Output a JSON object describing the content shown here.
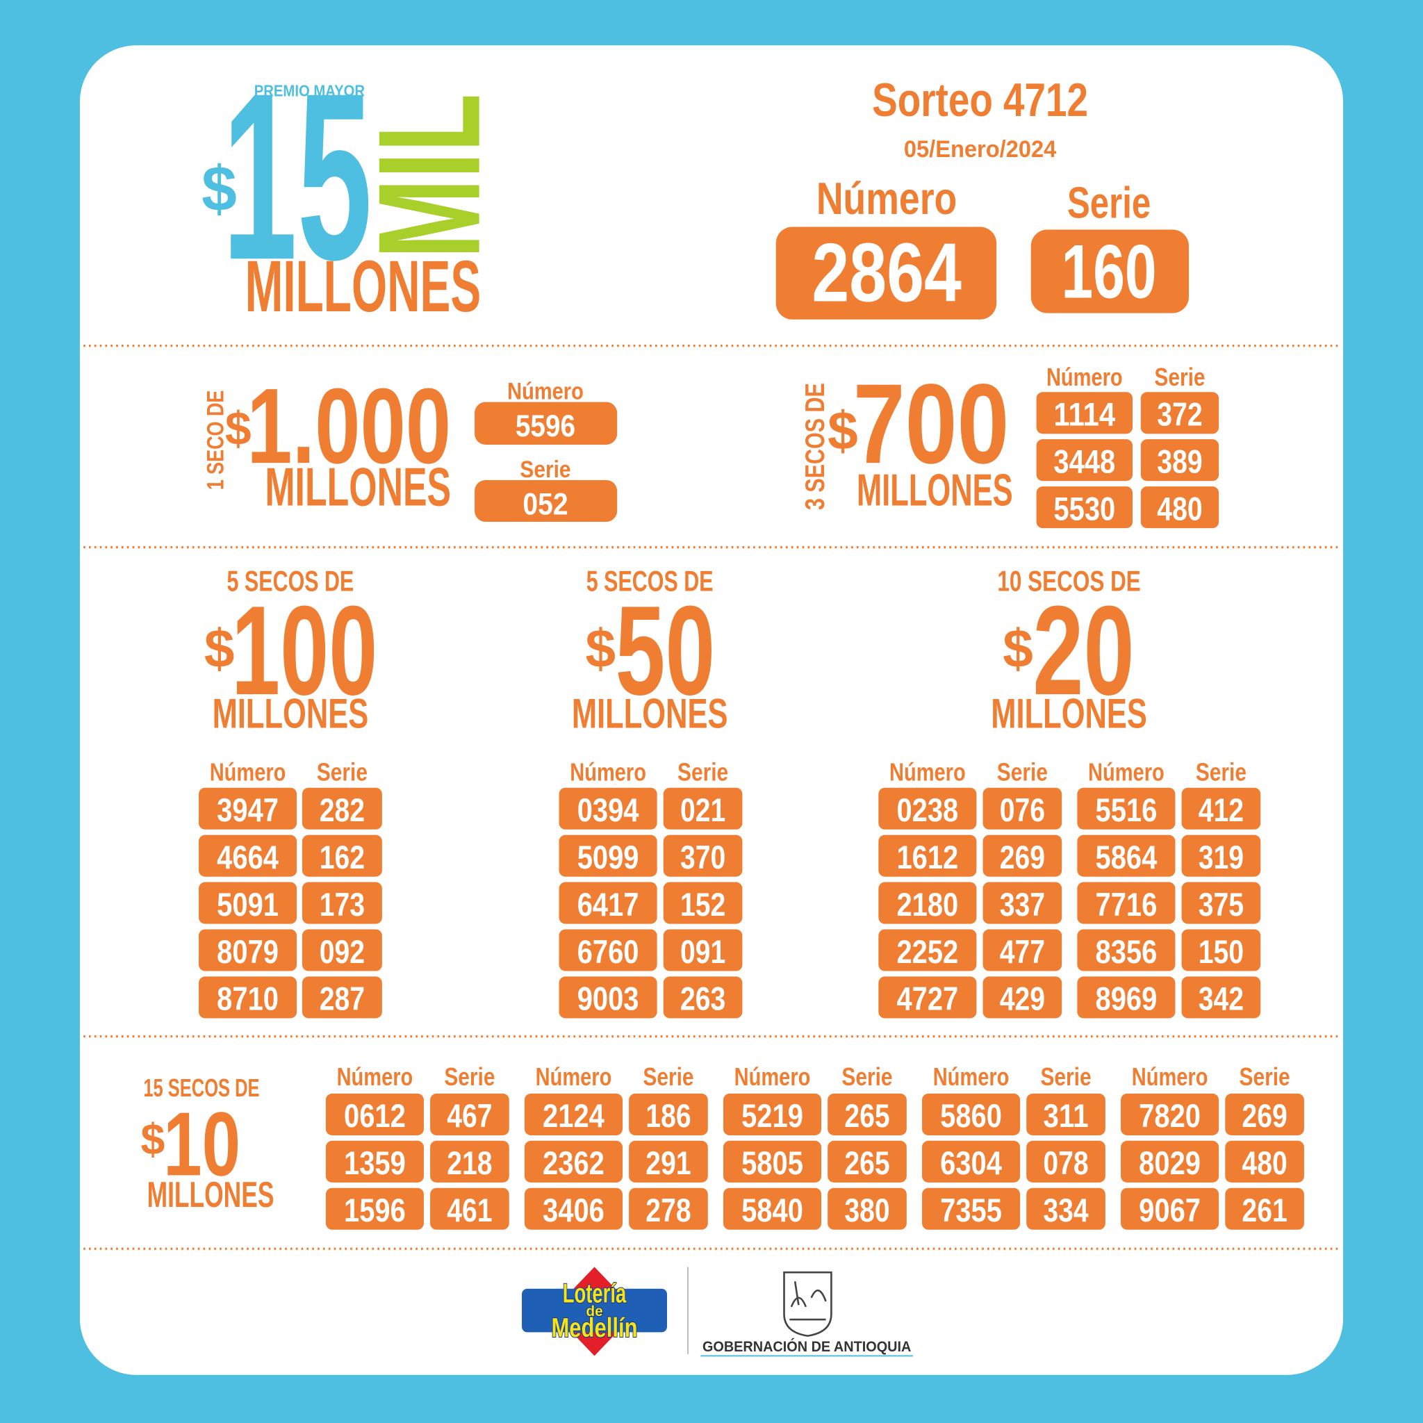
{
  "header": {
    "premio_label": "PREMIO MAYOR",
    "currency": "$",
    "amount": "15",
    "mil": "MIL",
    "millones": "MILLONES"
  },
  "sorteo": {
    "title": "Sorteo 4712",
    "date": "05/Enero/2024",
    "numero_label": "Número",
    "serie_label": "Serie",
    "numero": "2864",
    "serie": "160"
  },
  "prizes": [
    {
      "count_label": "1 SECO DE",
      "currency": "$",
      "amount": "1.000",
      "unit": "MILLONES",
      "groups": [
        {
          "headers": [
            "Número",
            "Serie"
          ],
          "rows": [
            [
              "5596",
              "052"
            ]
          ]
        }
      ]
    },
    {
      "count_label": "3 SECOS DE",
      "currency": "$",
      "amount": "700",
      "unit": "MILLONES",
      "groups": [
        {
          "headers": [
            "Número",
            "Serie"
          ],
          "rows": [
            [
              "1114",
              "372"
            ],
            [
              "3448",
              "389"
            ],
            [
              "5530",
              "480"
            ]
          ]
        }
      ]
    },
    {
      "count_label": "5 SECOS DE",
      "currency": "$",
      "amount": "100",
      "unit": "MILLONES",
      "groups": [
        {
          "headers": [
            "Número",
            "Serie"
          ],
          "rows": [
            [
              "3947",
              "282"
            ],
            [
              "4664",
              "162"
            ],
            [
              "5091",
              "173"
            ],
            [
              "8079",
              "092"
            ],
            [
              "8710",
              "287"
            ]
          ]
        }
      ]
    },
    {
      "count_label": "5 SECOS DE",
      "currency": "$",
      "amount": "50",
      "unit": "MILLONES",
      "groups": [
        {
          "headers": [
            "Número",
            "Serie"
          ],
          "rows": [
            [
              "0394",
              "021"
            ],
            [
              "5099",
              "370"
            ],
            [
              "6417",
              "152"
            ],
            [
              "6760",
              "091"
            ],
            [
              "9003",
              "263"
            ]
          ]
        }
      ]
    },
    {
      "count_label": "10 SECOS DE",
      "currency": "$",
      "amount": "20",
      "unit": "MILLONES",
      "groups": [
        {
          "headers": [
            "Número",
            "Serie"
          ],
          "rows": [
            [
              "0238",
              "076"
            ],
            [
              "1612",
              "269"
            ],
            [
              "2180",
              "337"
            ],
            [
              "2252",
              "477"
            ],
            [
              "4727",
              "429"
            ]
          ]
        },
        {
          "headers": [
            "Número",
            "Serie"
          ],
          "rows": [
            [
              "5516",
              "412"
            ],
            [
              "5864",
              "319"
            ],
            [
              "7716",
              "375"
            ],
            [
              "8356",
              "150"
            ],
            [
              "8969",
              "342"
            ]
          ]
        }
      ]
    },
    {
      "count_label": "15 SECOS DE",
      "currency": "$",
      "amount": "10",
      "unit": "MILLONES",
      "groups": [
        {
          "headers": [
            "Número",
            "Serie"
          ],
          "rows": [
            [
              "0612",
              "467"
            ],
            [
              "1359",
              "218"
            ],
            [
              "1596",
              "461"
            ]
          ]
        },
        {
          "headers": [
            "Número",
            "Serie"
          ],
          "rows": [
            [
              "2124",
              "186"
            ],
            [
              "2362",
              "291"
            ],
            [
              "3406",
              "278"
            ]
          ]
        },
        {
          "headers": [
            "Número",
            "Serie"
          ],
          "rows": [
            [
              "5219",
              "265"
            ],
            [
              "5805",
              "265"
            ],
            [
              "5840",
              "380"
            ]
          ]
        },
        {
          "headers": [
            "Número",
            "Serie"
          ],
          "rows": [
            [
              "5860",
              "311"
            ],
            [
              "6304",
              "078"
            ],
            [
              "7355",
              "334"
            ]
          ]
        },
        {
          "headers": [
            "Número",
            "Serie"
          ],
          "rows": [
            [
              "7820",
              "269"
            ],
            [
              "8029",
              "480"
            ],
            [
              "9067",
              "261"
            ]
          ]
        }
      ]
    }
  ],
  "footer": {
    "logo_line1": "Lotería",
    "logo_line2": "de",
    "logo_line3": "Medellín",
    "gobernacion": "GOBERNACIÓN DE ANTIOQUIA"
  }
}
